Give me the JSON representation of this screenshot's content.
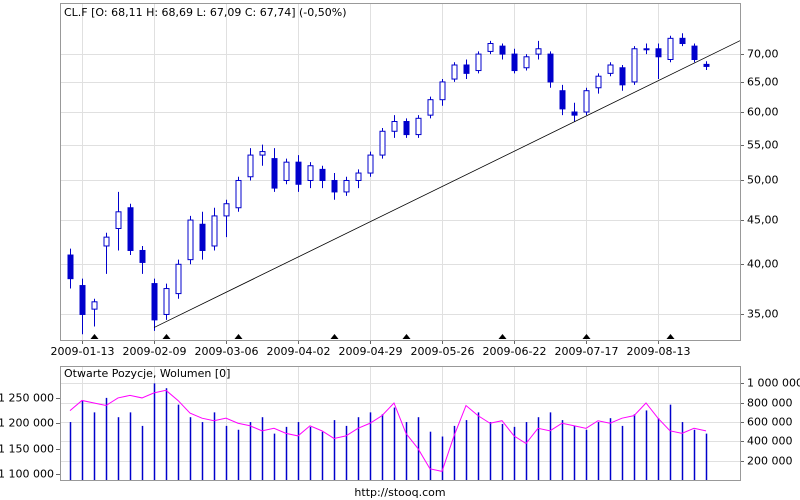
{
  "chart_data": [
    {
      "type": "candlestick",
      "title": "CL.F [O: 68,11  H: 68,69  L: 67,09  C: 67,74] (-0,50%)",
      "color": "#0000cc",
      "log_scale": true,
      "grid": true,
      "categories": [
        "2009-01-08",
        "2009-01-13",
        "2009-01-16",
        "2009-01-22",
        "2009-01-27",
        "2009-01-30",
        "2009-02-04",
        "2009-02-09",
        "2009-02-12",
        "2009-02-18",
        "2009-02-23",
        "2009-02-26",
        "2009-03-03",
        "2009-03-06",
        "2009-03-11",
        "2009-03-16",
        "2009-03-20",
        "2009-03-25",
        "2009-03-30",
        "2009-04-02",
        "2009-04-07",
        "2009-04-13",
        "2009-04-16",
        "2009-04-21",
        "2009-04-24",
        "2009-04-29",
        "2009-05-04",
        "2009-05-07",
        "2009-05-12",
        "2009-05-15",
        "2009-05-20",
        "2009-05-26",
        "2009-05-29",
        "2009-06-03",
        "2009-06-08",
        "2009-06-11",
        "2009-06-16",
        "2009-06-22",
        "2009-06-25",
        "2009-06-30",
        "2009-07-06",
        "2009-07-09",
        "2009-07-14",
        "2009-07-17",
        "2009-07-22",
        "2009-07-27",
        "2009-07-30",
        "2009-08-04",
        "2009-08-07",
        "2009-08-13",
        "2009-08-18",
        "2009-08-21",
        "2009-08-26",
        "2009-08-28"
      ],
      "open": [
        41.0,
        37.8,
        35.5,
        42.0,
        44.0,
        46.5,
        41.5,
        38.0,
        35.0,
        37.0,
        40.5,
        44.5,
        42.0,
        45.5,
        46.5,
        50.5,
        53.5,
        53.0,
        50.0,
        52.5,
        50.0,
        51.5,
        50.0,
        48.5,
        50.0,
        51.0,
        53.5,
        57.0,
        58.5,
        56.5,
        59.5,
        62.0,
        65.5,
        68.0,
        67.0,
        70.5,
        71.5,
        70.0,
        67.5,
        70.0,
        70.0,
        63.5,
        60.0,
        60.0,
        64.0,
        66.5,
        67.5,
        65.0,
        71.0,
        71.0,
        69.0,
        73.0,
        71.5,
        68.11
      ],
      "high": [
        41.7,
        38.5,
        36.5,
        43.5,
        48.5,
        47.0,
        42.0,
        38.5,
        38.0,
        40.5,
        45.5,
        46.0,
        46.5,
        47.5,
        50.5,
        54.5,
        55.0,
        54.5,
        53.0,
        53.5,
        52.5,
        52.0,
        51.0,
        50.5,
        51.5,
        54.0,
        57.5,
        59.5,
        59.0,
        59.5,
        62.5,
        65.5,
        68.5,
        69.0,
        70.5,
        72.5,
        72.0,
        71.0,
        70.0,
        72.5,
        70.5,
        64.5,
        61.5,
        64.0,
        66.5,
        68.5,
        68.0,
        71.5,
        72.0,
        72.0,
        73.5,
        74.0,
        72.0,
        68.69
      ],
      "low": [
        37.5,
        33.2,
        33.9,
        39.0,
        41.5,
        41.0,
        39.0,
        33.5,
        34.5,
        36.5,
        40.0,
        40.5,
        41.5,
        43.0,
        46.0,
        50.0,
        52.0,
        48.5,
        49.5,
        48.5,
        49.0,
        49.0,
        47.5,
        48.0,
        49.0,
        50.5,
        53.0,
        56.0,
        56.0,
        56.0,
        59.0,
        61.0,
        65.0,
        65.5,
        66.5,
        70.0,
        69.0,
        66.5,
        67.0,
        69.0,
        64.0,
        59.5,
        58.5,
        59.5,
        63.0,
        66.0,
        63.5,
        64.5,
        70.0,
        65.5,
        68.5,
        71.5,
        68.5,
        67.09
      ],
      "close": [
        38.5,
        35.0,
        36.2,
        43.0,
        46.0,
        41.5,
        40.2,
        34.5,
        37.5,
        40.0,
        45.0,
        41.5,
        45.5,
        47.0,
        50.0,
        53.5,
        54.0,
        49.0,
        52.5,
        49.5,
        52.0,
        50.0,
        48.5,
        50.0,
        51.0,
        53.5,
        57.0,
        58.5,
        56.5,
        59.0,
        62.0,
        65.0,
        68.0,
        66.5,
        70.0,
        72.0,
        70.0,
        67.0,
        69.5,
        71.0,
        65.0,
        60.5,
        59.5,
        63.5,
        66.0,
        68.0,
        64.5,
        71.0,
        71.0,
        69.5,
        73.0,
        72.0,
        69.0,
        67.74
      ],
      "ylim": [
        32.7,
        80.2
      ],
      "yticks": [
        {
          "value": 35,
          "label": "35,00"
        },
        {
          "value": 40,
          "label": "40,00"
        },
        {
          "value": 45,
          "label": "45,00"
        },
        {
          "value": 50,
          "label": "50,00"
        },
        {
          "value": 55,
          "label": "55,00"
        },
        {
          "value": 60,
          "label": "60,00"
        },
        {
          "value": 65,
          "label": "65,00"
        },
        {
          "value": 70,
          "label": "70,00"
        }
      ],
      "xticks": [
        "2009-01-13",
        "2009-02-09",
        "2009-03-06",
        "2009-04-02",
        "2009-04-29",
        "2009-05-26",
        "2009-06-22",
        "2009-07-17",
        "2009-08-13"
      ],
      "trendline": {
        "color": "#000000",
        "x": [
          "2009-02-09",
          "2009-08-28"
        ],
        "y": [
          33.8,
          69.4
        ]
      },
      "markers": [
        "2009-01-16",
        "2009-02-12",
        "2009-03-11",
        "2009-04-16",
        "2009-05-12",
        "2009-06-16",
        "2009-07-17",
        "2009-08-18"
      ]
    },
    {
      "type": "combo",
      "title": "Otwarte Pozycje, Wolumen [0]",
      "grid": true,
      "series": [
        {
          "type": "line",
          "color": "#ff00ff",
          "values": [
            1225000,
            1245000,
            1240000,
            1235000,
            1250000,
            1255000,
            1250000,
            1260000,
            1265000,
            1245000,
            1220000,
            1210000,
            1205000,
            1210000,
            1200000,
            1195000,
            1185000,
            1190000,
            1180000,
            1175000,
            1195000,
            1185000,
            1170000,
            1175000,
            1190000,
            1200000,
            1215000,
            1240000,
            1180000,
            1150000,
            1110000,
            1105000,
            1175000,
            1235000,
            1215000,
            1200000,
            1205000,
            1175000,
            1160000,
            1190000,
            1185000,
            1200000,
            1195000,
            1190000,
            1205000,
            1200000,
            1210000,
            1215000,
            1240000,
            1210000,
            1185000,
            1180000,
            1190000,
            1185000
          ]
        },
        {
          "type": "bar",
          "axis": "y2",
          "color": "#0000cc",
          "values": [
            600000,
            820000,
            700000,
            850000,
            650000,
            700000,
            560000,
            1000000,
            950000,
            780000,
            650000,
            600000,
            700000,
            560000,
            520000,
            600000,
            650000,
            480000,
            550000,
            600000,
            550000,
            500000,
            620000,
            560000,
            650000,
            700000,
            680000,
            750000,
            600000,
            650000,
            500000,
            450000,
            560000,
            620000,
            700000,
            600000,
            580000,
            550000,
            600000,
            650000,
            700000,
            620000,
            560000,
            520000,
            600000,
            640000,
            560000,
            680000,
            720000,
            640000,
            780000,
            600000,
            520000,
            480000
          ]
        }
      ],
      "ylim": [
        1088000,
        1313000
      ],
      "yticks": [
        {
          "value": 1100000,
          "label": "1 100 000"
        },
        {
          "value": 1150000,
          "label": "1 150 000"
        },
        {
          "value": 1200000,
          "label": "1 200 000"
        },
        {
          "value": 1250000,
          "label": "1 250 000"
        }
      ],
      "y2lim": [
        0,
        1180000
      ],
      "y2ticks": [
        {
          "value": 200000,
          "label": "200 000"
        },
        {
          "value": 400000,
          "label": "400 000"
        },
        {
          "value": 600000,
          "label": "600 000"
        },
        {
          "value": 800000,
          "label": "800 000"
        },
        {
          "value": 1000000,
          "label": "1 000 000"
        }
      ]
    }
  ],
  "footer": "http://stooq.com"
}
